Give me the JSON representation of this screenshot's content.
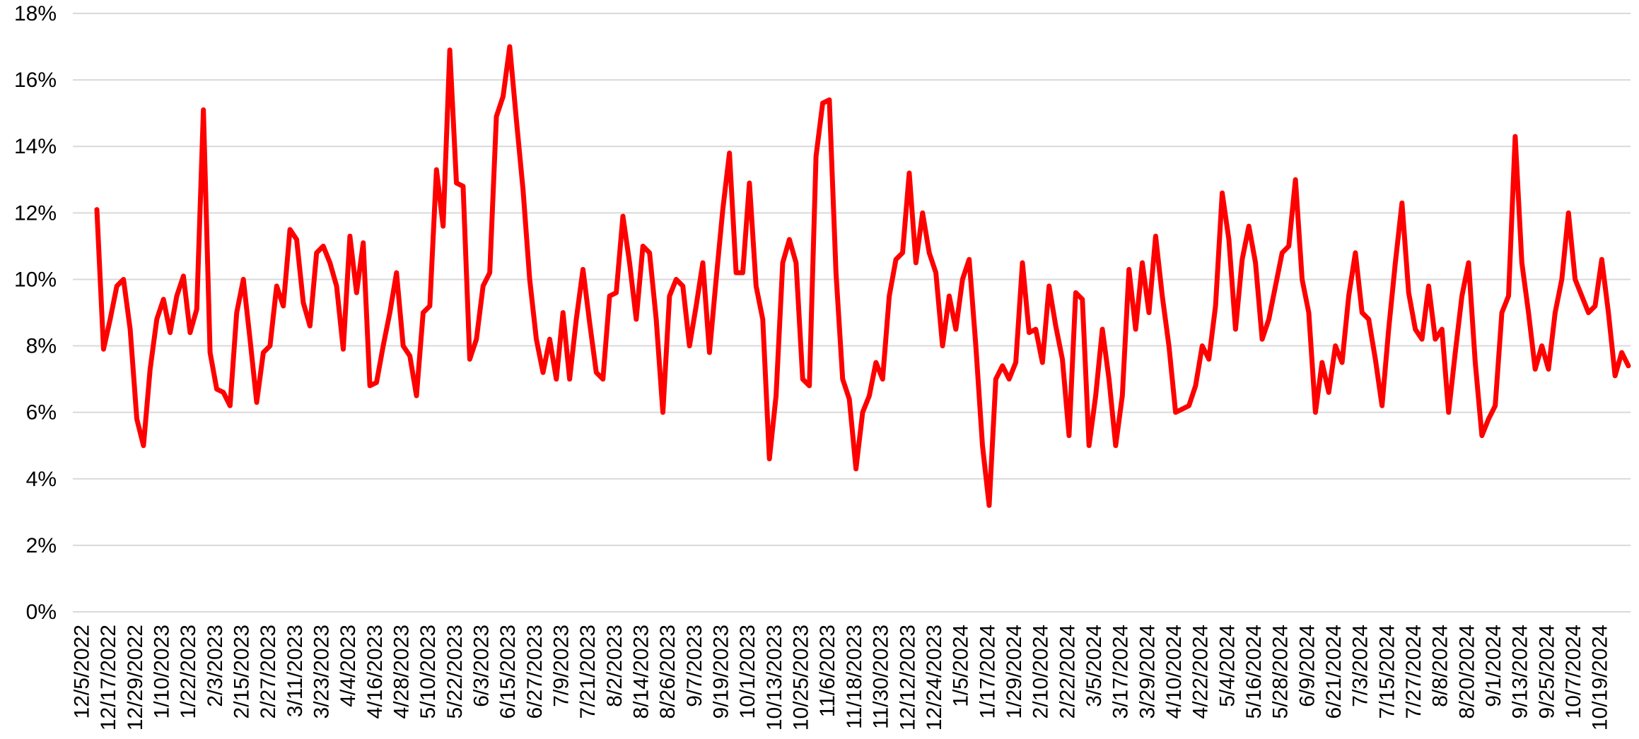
{
  "chart_data": {
    "type": "line",
    "color": "#ff0000",
    "grid": true,
    "ylim": [
      0,
      18
    ],
    "yticks": [
      {
        "value": 0,
        "label": "0%"
      },
      {
        "value": 2,
        "label": "2%"
      },
      {
        "value": 4,
        "label": "4%"
      },
      {
        "value": 6,
        "label": "6%"
      },
      {
        "value": 8,
        "label": "8%"
      },
      {
        "value": 10,
        "label": "10%"
      },
      {
        "value": 12,
        "label": "12%"
      },
      {
        "value": 14,
        "label": "14%"
      },
      {
        "value": 16,
        "label": "16%"
      },
      {
        "value": 18,
        "label": "18%"
      }
    ],
    "categories": [
      "12/5/2022",
      null,
      null,
      null,
      "12/17/2022",
      null,
      null,
      null,
      "12/29/2022",
      null,
      null,
      null,
      "1/10/2023",
      null,
      null,
      null,
      "1/22/2023",
      null,
      null,
      null,
      "2/3/2023",
      null,
      null,
      null,
      "2/15/2023",
      null,
      null,
      null,
      "2/27/2023",
      null,
      null,
      null,
      "3/11/2023",
      null,
      null,
      null,
      "3/23/2023",
      null,
      null,
      null,
      "4/4/2023",
      null,
      null,
      null,
      "4/16/2023",
      null,
      null,
      null,
      "4/28/2023",
      null,
      null,
      null,
      "5/10/2023",
      null,
      null,
      null,
      "5/22/2023",
      null,
      null,
      null,
      "6/3/2023",
      null,
      null,
      null,
      "6/15/2023",
      null,
      null,
      null,
      "6/27/2023",
      null,
      null,
      null,
      "7/9/2023",
      null,
      null,
      null,
      "7/21/2023",
      null,
      null,
      null,
      "8/2/2023",
      null,
      null,
      null,
      "8/14/2023",
      null,
      null,
      null,
      "8/26/2023",
      null,
      null,
      null,
      "9/7/2023",
      null,
      null,
      null,
      "9/19/2023",
      null,
      null,
      null,
      "10/1/2023",
      null,
      null,
      null,
      "10/13/2023",
      null,
      null,
      null,
      "10/25/2023",
      null,
      null,
      null,
      "11/6/2023",
      null,
      null,
      null,
      "11/18/2023",
      null,
      null,
      null,
      "11/30/2023",
      null,
      null,
      null,
      "12/12/2023",
      null,
      null,
      null,
      "12/24/2023",
      null,
      null,
      null,
      "1/5/2024",
      null,
      null,
      null,
      "1/17/2024",
      null,
      null,
      null,
      "1/29/2024",
      null,
      null,
      null,
      "2/10/2024",
      null,
      null,
      null,
      "2/22/2024",
      null,
      null,
      null,
      "3/5/2024",
      null,
      null,
      null,
      "3/17/2024",
      null,
      null,
      null,
      "3/29/2024",
      null,
      null,
      null,
      "4/10/2024",
      null,
      null,
      null,
      "4/22/2024",
      null,
      null,
      null,
      "5/4/2024",
      null,
      null,
      null,
      "5/16/2024",
      null,
      null,
      null,
      "5/28/2024",
      null,
      null,
      null,
      "6/9/2024",
      null,
      null,
      null,
      "6/21/2024",
      null,
      null,
      null,
      "7/3/2024",
      null,
      null,
      null,
      "7/15/2024",
      null,
      null,
      null,
      "7/27/2024",
      null,
      null,
      null,
      "8/8/2024",
      null,
      null,
      null,
      "8/20/2024",
      null,
      null,
      null,
      "9/1/2024",
      null,
      null,
      null,
      "9/13/2024",
      null,
      null,
      null,
      "9/25/2024",
      null,
      null,
      null,
      "10/7/2024",
      null,
      null,
      null,
      "10/19/2024",
      null,
      null
    ],
    "values": [
      12.1,
      7.9,
      8.8,
      9.8,
      10.0,
      8.5,
      5.8,
      5.0,
      7.3,
      8.8,
      9.4,
      8.4,
      9.5,
      10.1,
      8.4,
      9.1,
      15.1,
      7.8,
      6.7,
      6.6,
      6.2,
      9.0,
      10.0,
      8.2,
      6.3,
      7.8,
      8.0,
      9.8,
      9.2,
      11.5,
      11.2,
      9.3,
      8.6,
      10.8,
      11.0,
      10.5,
      9.8,
      7.9,
      11.3,
      9.6,
      11.1,
      6.8,
      6.9,
      8.0,
      9.0,
      10.2,
      8.0,
      7.7,
      6.5,
      9.0,
      9.2,
      13.3,
      11.6,
      16.9,
      12.9,
      12.8,
      7.6,
      8.2,
      9.8,
      10.2,
      14.9,
      15.5,
      17.0,
      14.8,
      12.7,
      10.0,
      8.2,
      7.2,
      8.2,
      7.0,
      9.0,
      7.0,
      8.8,
      10.3,
      8.7,
      7.2,
      7.0,
      9.5,
      9.6,
      11.9,
      10.5,
      8.8,
      11.0,
      10.8,
      8.8,
      6.0,
      9.5,
      10.0,
      9.8,
      8.0,
      9.2,
      10.5,
      7.8,
      10.0,
      12.1,
      13.8,
      10.2,
      10.2,
      12.9,
      9.8,
      8.8,
      4.6,
      6.5,
      10.5,
      11.2,
      10.5,
      7.0,
      6.8,
      13.7,
      15.3,
      15.4,
      10.2,
      7.0,
      6.4,
      4.3,
      6.0,
      6.5,
      7.5,
      7.0,
      9.5,
      10.6,
      10.8,
      13.2,
      10.5,
      12.0,
      10.8,
      10.2,
      8.0,
      9.5,
      8.5,
      10.0,
      10.6,
      8.0,
      5.0,
      3.2,
      7.0,
      7.4,
      7.0,
      7.5,
      10.5,
      8.4,
      8.5,
      7.5,
      9.8,
      8.6,
      7.6,
      5.3,
      9.6,
      9.4,
      5.0,
      6.5,
      8.5,
      7.0,
      5.0,
      6.5,
      10.3,
      8.5,
      10.5,
      9.0,
      11.3,
      9.5,
      8.0,
      6.0,
      6.1,
      6.2,
      6.8,
      8.0,
      7.6,
      9.2,
      12.6,
      11.2,
      8.5,
      10.6,
      11.6,
      10.5,
      8.2,
      8.8,
      9.8,
      10.8,
      11.0,
      13.0,
      10.0,
      9.0,
      6.0,
      7.5,
      6.6,
      8.0,
      7.5,
      9.5,
      10.8,
      9.0,
      8.8,
      7.6,
      6.2,
      8.5,
      10.5,
      12.3,
      9.6,
      8.5,
      8.2,
      9.8,
      8.2,
      8.5,
      6.0,
      7.8,
      9.5,
      10.5,
      7.5,
      5.3,
      5.8,
      6.2,
      9.0,
      9.5,
      14.3,
      10.5,
      9.0,
      7.3,
      8.0,
      7.3,
      9.0,
      10.0,
      12.0,
      10.0,
      9.5,
      9.0,
      9.2,
      10.6,
      9.0,
      7.1,
      7.8,
      7.4
    ]
  }
}
